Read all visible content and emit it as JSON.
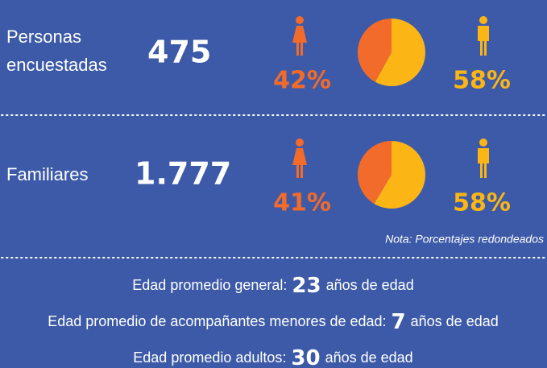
{
  "rows": [
    {
      "label": [
        "Personas",
        "encuestadas"
      ],
      "total": "475",
      "female": {
        "value": 42,
        "label": "42%"
      },
      "male": {
        "value": 58,
        "label": "58%"
      }
    },
    {
      "label": [
        "Familiares"
      ],
      "total": "1.777",
      "female": {
        "value": 41,
        "label": "41%"
      },
      "male": {
        "value": 58,
        "label": "58%"
      }
    }
  ],
  "note": "Nota: Porcentajes redondeados",
  "ages": [
    {
      "label": "Edad promedio general:",
      "value": "23",
      "unit": "años de edad"
    },
    {
      "label": "Edad promedio de acompañantes menores de edad:",
      "value": "7",
      "unit": "años de edad"
    },
    {
      "label": "Edad promedio adultos:",
      "value": "30",
      "unit": "años de edad"
    }
  ],
  "colors": {
    "female": "#f26b2a",
    "male": "#fbb616"
  }
}
